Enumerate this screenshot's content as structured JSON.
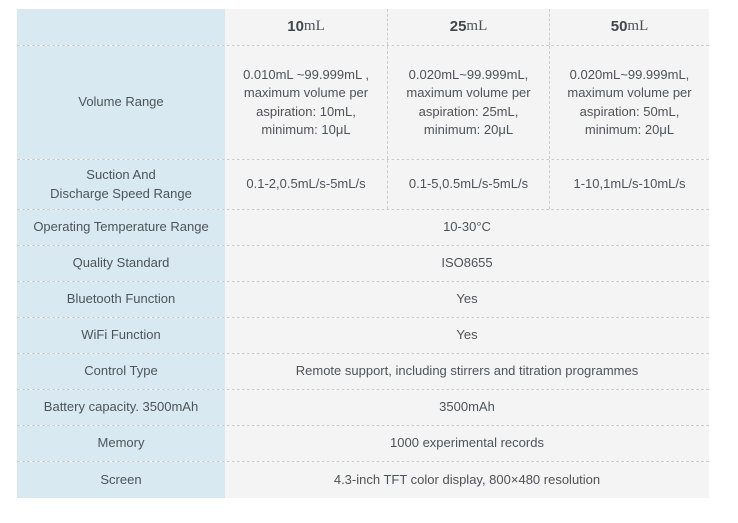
{
  "colors": {
    "label_column_bg": "#d9e9f2",
    "data_cell_bg": "#f4f4f5",
    "text": "#4e5358",
    "divider": "#c9ced3"
  },
  "header": {
    "columns": [
      {
        "num": "10",
        "unit": "mL"
      },
      {
        "num": "25",
        "unit": "mL"
      },
      {
        "num": "50",
        "unit": "mL"
      }
    ]
  },
  "rows": {
    "volume_range": {
      "label": "Volume Range",
      "values": [
        "0.010mL ~99.999mL ,\nmaximum volume per\naspiration: 10mL,\nminimum: 10μL",
        "0.020mL~99.999mL,\nmaximum volume per\naspiration: 25mL,\nminimum: 20μL",
        "0.020mL~99.999mL,\nmaximum volume per\naspiration: 50mL,\nminimum: 20μL"
      ]
    },
    "speed_range": {
      "label": "Suction And\nDischarge Speed Range",
      "values": [
        "0.1-2,0.5mL/s-5mL/s",
        "0.1-5,0.5mL/s-5mL/s",
        "1-10,1mL/s-10mL/s"
      ]
    },
    "operating_temperature": {
      "label": "Operating Temperature Range",
      "value": "10-30°C"
    },
    "quality_standard": {
      "label": "Quality Standard",
      "value": "ISO8655"
    },
    "bluetooth": {
      "label": "Bluetooth Function",
      "value": "Yes"
    },
    "wifi": {
      "label": "WiFi Function",
      "value": "Yes"
    },
    "control_type": {
      "label": "Control Type",
      "value": "Remote support, including stirrers and titration programmes"
    },
    "battery": {
      "label": "Battery capacity. 3500mAh",
      "value": "3500mAh"
    },
    "memory": {
      "label": "Memory",
      "value": "1000 experimental records"
    },
    "screen": {
      "label": "Screen",
      "value": "4.3-inch TFT color display, 800×480 resolution"
    }
  }
}
